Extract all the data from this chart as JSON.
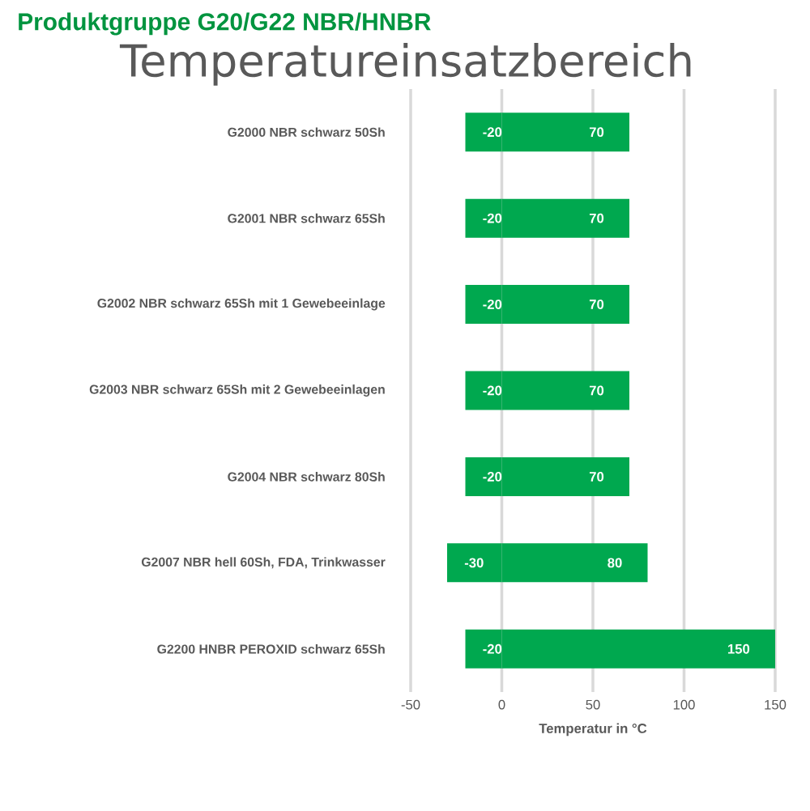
{
  "chart_data": {
    "type": "bar",
    "orientation": "horizontal",
    "stacked": true,
    "subtitle": "Produktgruppe G20/G22 NBR/HNBR",
    "title": "Temperatureinsatzbereich",
    "xlabel": "Temperatur in °C",
    "categories": [
      "G2000 NBR schwarz 50Sh",
      "G2001 NBR schwarz 65Sh",
      "G2002 NBR schwarz 65Sh mit 1 Gewebeeinlage",
      "G2003 NBR schwarz 65Sh mit 2 Gewebeeinlagen",
      "G2004 NBR schwarz 80Sh",
      "G2007 NBR hell 60Sh, FDA, Trinkwasser",
      "G2200 HNBR PEROXID schwarz 65Sh"
    ],
    "series": [
      {
        "color": "#00a84f",
        "values": [
          -20,
          -20,
          -20,
          -20,
          -20,
          -30,
          -20
        ]
      },
      {
        "color": "#00a84f",
        "values": [
          70,
          70,
          70,
          70,
          70,
          80,
          150
        ]
      }
    ],
    "xlim": [
      -50,
      150
    ],
    "xticks": [
      -50,
      0,
      50,
      100,
      150
    ],
    "grid": "x",
    "data_labels": true
  }
}
